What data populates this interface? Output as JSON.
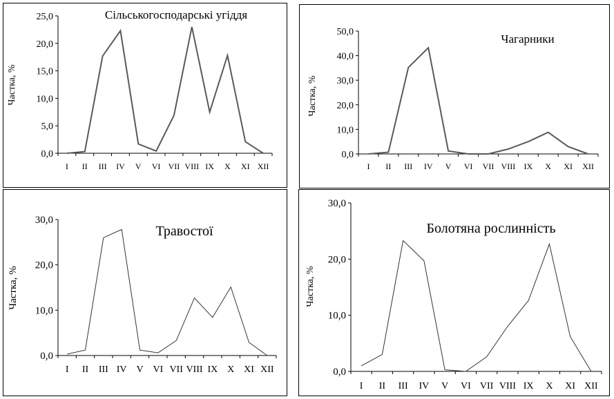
{
  "chart_data": [
    {
      "type": "line",
      "title": "Сільськогосподарські угіддя",
      "ylabel": "Частка, %",
      "xlabel": "",
      "categories": [
        "I",
        "II",
        "III",
        "IV",
        "V",
        "VI",
        "VII",
        "VIII",
        "IX",
        "X",
        "XI",
        "XII"
      ],
      "values": [
        0.0,
        0.3,
        17.7,
        22.3,
        1.7,
        0.4,
        6.9,
        23.0,
        7.5,
        17.8,
        2.1,
        0.0
      ],
      "ylim": [
        0,
        25
      ],
      "yticks": [
        "0,0",
        "5,0",
        "10,0",
        "15,0",
        "20,0",
        "25,0"
      ],
      "line_color": "#595959",
      "grid": false
    },
    {
      "type": "line",
      "title": "Чагарники",
      "ylabel": "Частка, %",
      "xlabel": "",
      "categories": [
        "I",
        "II",
        "III",
        "IV",
        "V",
        "VI",
        "VII",
        "VIII",
        "IX",
        "X",
        "XI",
        "XII"
      ],
      "values": [
        0.0,
        0.7,
        35.2,
        43.2,
        1.2,
        0.0,
        0.0,
        2.0,
        5.0,
        8.8,
        3.0,
        0.0
      ],
      "ylim": [
        0,
        50
      ],
      "yticks": [
        "0,0",
        "10,0",
        "20,0",
        "30,0",
        "40,0",
        "50,0"
      ],
      "line_color": "#595959",
      "grid": false
    },
    {
      "type": "line",
      "title": "Травостої",
      "ylabel": "Частка, %",
      "xlabel": "",
      "categories": [
        "I",
        "II",
        "III",
        "IV",
        "V",
        "VI",
        "VII",
        "VIII",
        "IX",
        "X",
        "XI",
        "XII"
      ],
      "values": [
        0.3,
        1.2,
        26.0,
        27.8,
        1.2,
        0.6,
        3.3,
        12.7,
        8.4,
        15.1,
        2.9,
        0.0
      ],
      "ylim": [
        0,
        30
      ],
      "yticks": [
        "0,0",
        "10,0",
        "20,0",
        "30,0"
      ],
      "line_color": "#333333",
      "grid": false
    },
    {
      "type": "line",
      "title": "Болотяна рослинність",
      "ylabel": "Частка, %",
      "xlabel": "",
      "categories": [
        "I",
        "II",
        "III",
        "IV",
        "V",
        "VI",
        "VII",
        "VIII",
        "IX",
        "X",
        "XI",
        "XII"
      ],
      "values": [
        1.0,
        3.0,
        23.3,
        19.7,
        0.3,
        0.0,
        2.6,
        8.0,
        12.6,
        22.7,
        6.2,
        0.0
      ],
      "ylim": [
        0,
        30
      ],
      "yticks": [
        "0,0",
        "10,0",
        "20,0",
        "30,0"
      ],
      "line_color": "#333333",
      "grid": false
    }
  ]
}
